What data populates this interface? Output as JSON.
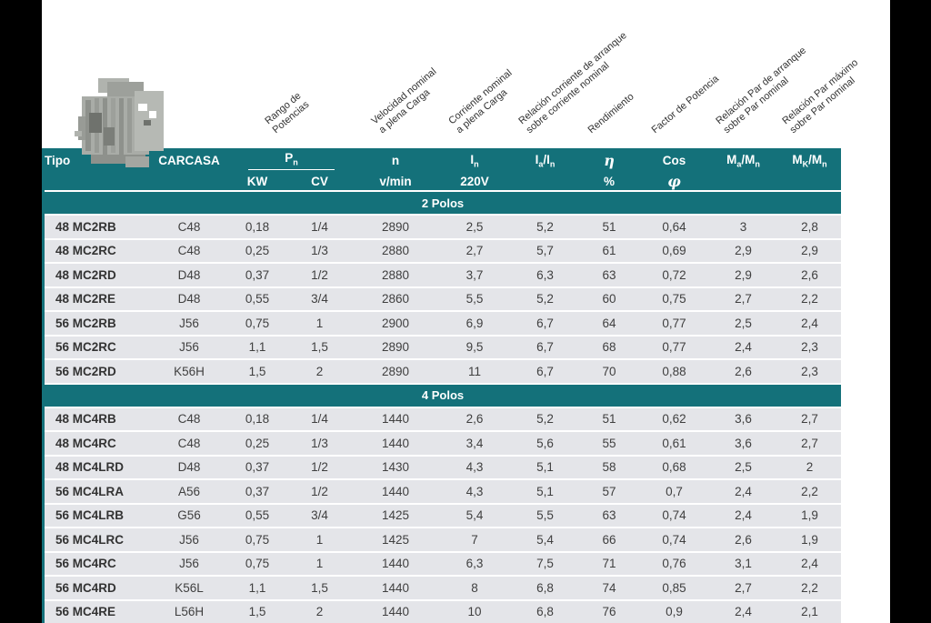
{
  "colors": {
    "teal": "#14717a",
    "row_background": "#e4e5e9",
    "side_bars": "#000000",
    "page_background": "#ffffff"
  },
  "rotated_headers": [
    {
      "id": "rango-de-potencias",
      "lines": [
        "Rango de",
        "Potencias"
      ]
    },
    {
      "id": "velocidad-nominal",
      "lines": [
        "Velocidad nominal",
        "a plena Carga"
      ]
    },
    {
      "id": "corriente-nominal",
      "lines": [
        "Corriente nominal",
        "a plena Carga"
      ]
    },
    {
      "id": "relacion-corriente-arranque",
      "lines": [
        "Relación corriente de arranque",
        "sobre corriente nominal"
      ]
    },
    {
      "id": "rendimiento",
      "lines": [
        "Rendimiento"
      ]
    },
    {
      "id": "factor-de-potencia",
      "lines": [
        "Factor de Potencia"
      ]
    },
    {
      "id": "relacion-par-arranque",
      "lines": [
        "Relación Par de arranque",
        "sobre Par nominal"
      ]
    },
    {
      "id": "relacion-par-maximo",
      "lines": [
        "Relación Par máximo",
        "sobre Par nominal"
      ]
    }
  ],
  "table": {
    "header": {
      "tipo": "Tipo",
      "carcasa": "CARCASA",
      "pn": "P_n",
      "kw": "KW",
      "cv": "CV",
      "n": "n",
      "vmin": "v/min",
      "in": "I_n",
      "v220": "220V",
      "iain": "I_a/I_n",
      "eta": "η",
      "pct": "%",
      "cos": "Cos",
      "phi": "φ",
      "ma": "M_a/M_n",
      "mk": "M_K/M_n"
    },
    "sections": [
      {
        "title": "2 Polos",
        "rows": [
          [
            "48 MC2RB",
            "C48",
            "0,18",
            "1/4",
            "2890",
            "2,5",
            "5,2",
            "51",
            "0,64",
            "3",
            "2,8"
          ],
          [
            "48 MC2RC",
            "C48",
            "0,25",
            "1/3",
            "2880",
            "2,7",
            "5,7",
            "61",
            "0,69",
            "2,9",
            "2,9"
          ],
          [
            "48 MC2RD",
            "D48",
            "0,37",
            "1/2",
            "2880",
            "3,7",
            "6,3",
            "63",
            "0,72",
            "2,9",
            "2,6"
          ],
          [
            "48 MC2RE",
            "D48",
            "0,55",
            "3/4",
            "2860",
            "5,5",
            "5,2",
            "60",
            "0,75",
            "2,7",
            "2,2"
          ],
          [
            "56 MC2RB",
            "J56",
            "0,75",
            "1",
            "2900",
            "6,9",
            "6,7",
            "64",
            "0,77",
            "2,5",
            "2,4"
          ],
          [
            "56 MC2RC",
            "J56",
            "1,1",
            "1,5",
            "2890",
            "9,5",
            "6,7",
            "68",
            "0,77",
            "2,4",
            "2,3"
          ],
          [
            "56 MC2RD",
            "K56H",
            "1,5",
            "2",
            "2890",
            "11",
            "6,7",
            "70",
            "0,88",
            "2,6",
            "2,3"
          ]
        ]
      },
      {
        "title": "4 Polos",
        "rows": [
          [
            "48 MC4RB",
            "C48",
            "0,18",
            "1/4",
            "1440",
            "2,6",
            "5,2",
            "51",
            "0,62",
            "3,6",
            "2,7"
          ],
          [
            "48 MC4RC",
            "C48",
            "0,25",
            "1/3",
            "1440",
            "3,4",
            "5,6",
            "55",
            "0,61",
            "3,6",
            "2,7"
          ],
          [
            "48 MC4LRD",
            "D48",
            "0,37",
            "1/2",
            "1430",
            "4,3",
            "5,1",
            "58",
            "0,68",
            "2,5",
            "2"
          ],
          [
            "56 MC4LRA",
            "A56",
            "0,37",
            "1/2",
            "1440",
            "4,3",
            "5,1",
            "57",
            "0,7",
            "2,4",
            "2,2"
          ],
          [
            "56 MC4LRB",
            "G56",
            "0,55",
            "3/4",
            "1425",
            "5,4",
            "5,5",
            "63",
            "0,74",
            "2,4",
            "1,9"
          ],
          [
            "56 MC4LRC",
            "J56",
            "0,75",
            "1",
            "1425",
            "7",
            "5,4",
            "66",
            "0,74",
            "2,6",
            "1,9"
          ],
          [
            "56 MC4RC",
            "J56",
            "0,75",
            "1",
            "1440",
            "6,3",
            "7,5",
            "71",
            "0,76",
            "3,1",
            "2,4"
          ],
          [
            "56 MC4RD",
            "K56L",
            "1,1",
            "1,5",
            "1440",
            "8",
            "6,8",
            "74",
            "0,85",
            "2,7",
            "2,2"
          ],
          [
            "56 MC4RE",
            "L56H",
            "1,5",
            "2",
            "1440",
            "10",
            "6,8",
            "76",
            "0,9",
            "2,4",
            "2,1"
          ]
        ]
      }
    ]
  }
}
